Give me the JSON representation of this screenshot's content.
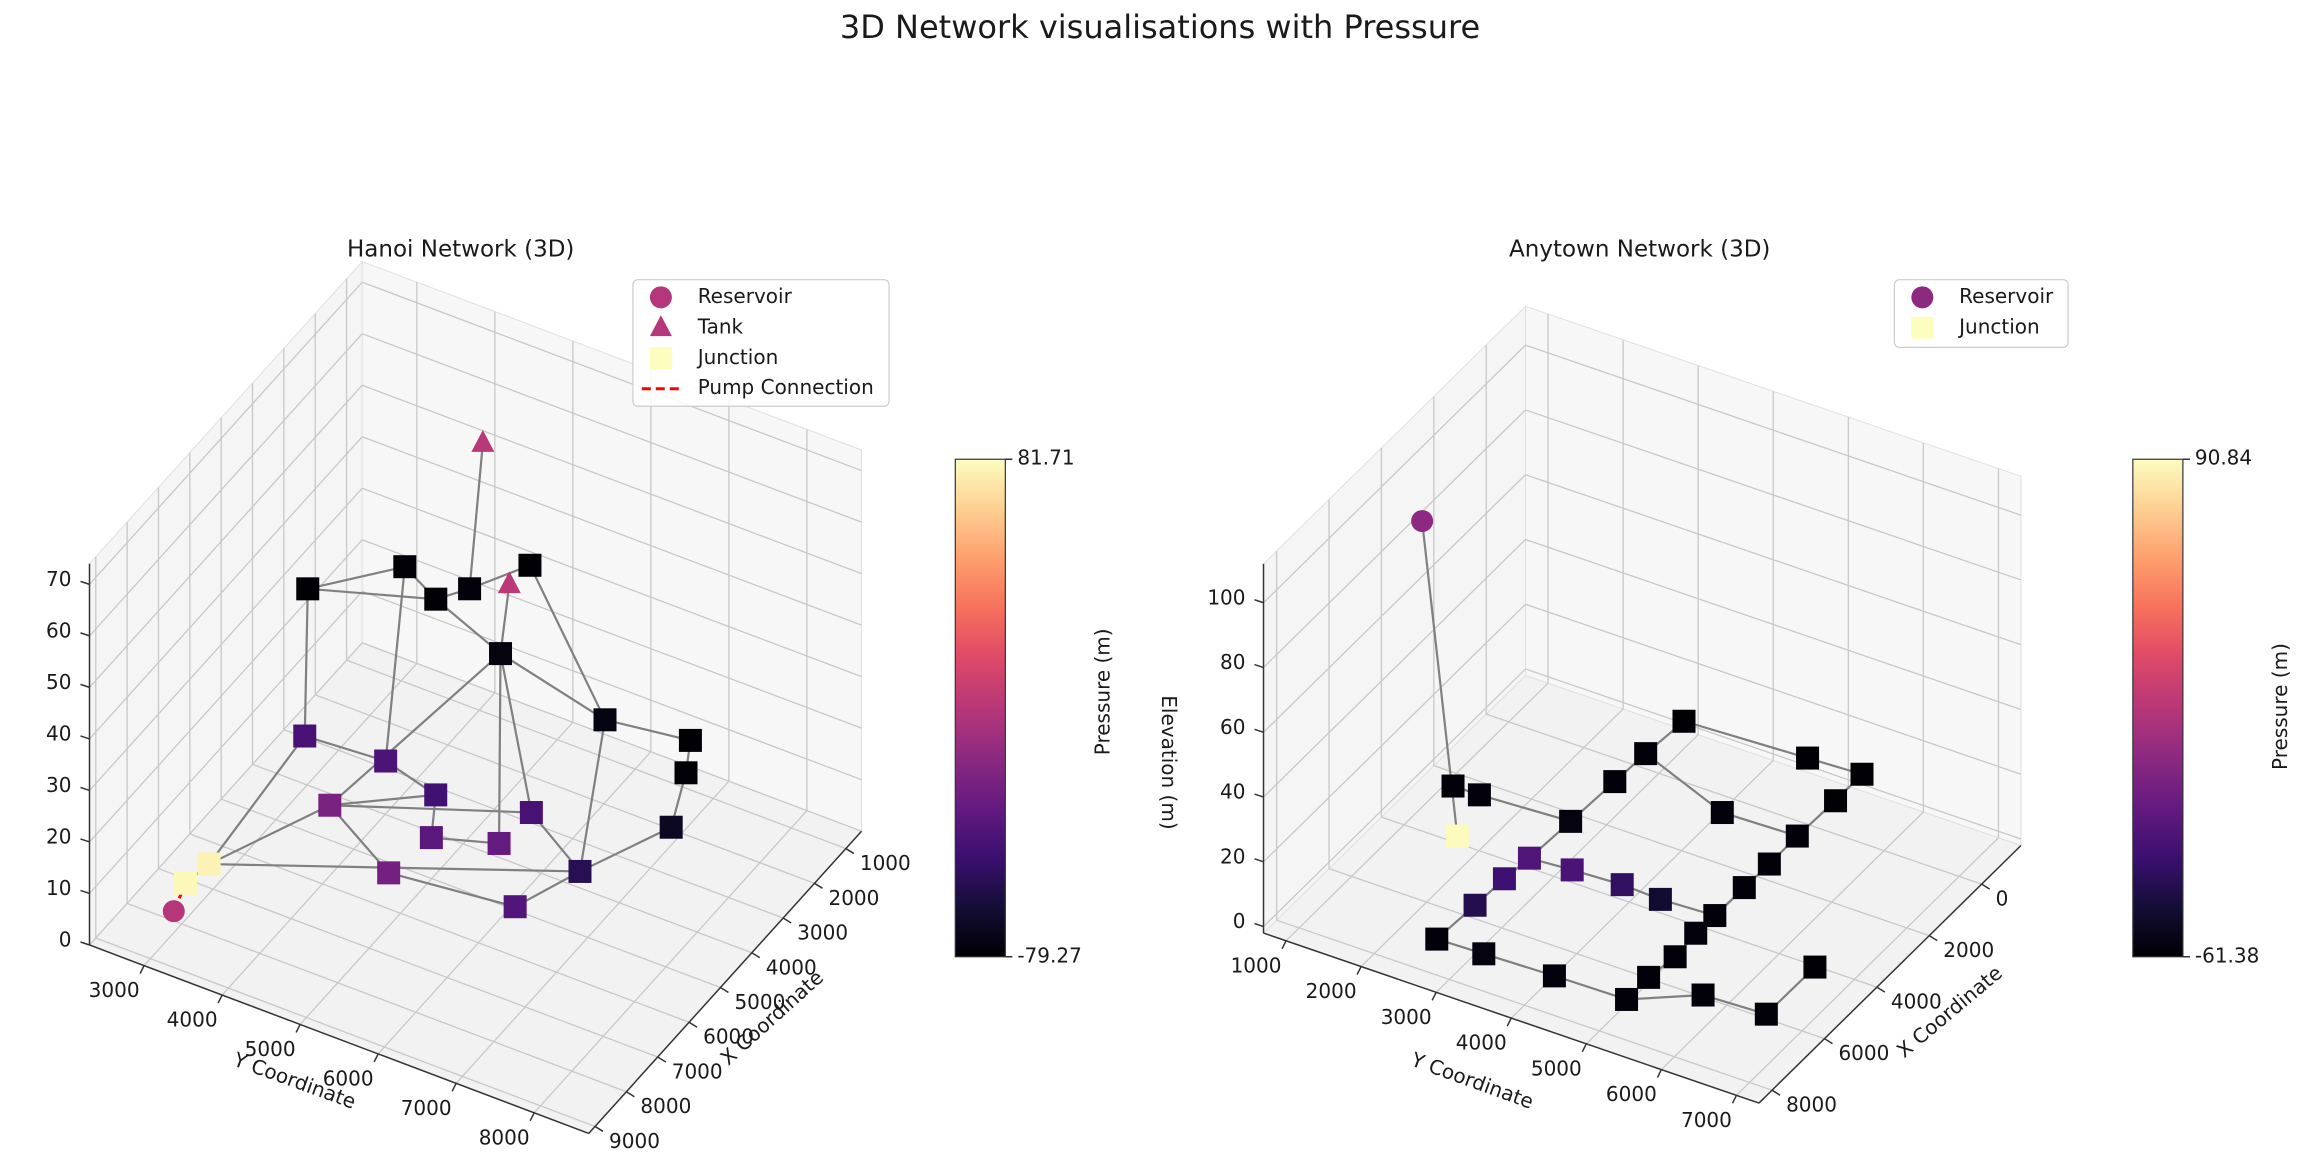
{
  "title": "3D Network visualisations with Pressure",
  "chart_data": [
    {
      "type": "network3d",
      "title": "Hanoi Network (3D)",
      "xlabel": "X Coordinate",
      "ylabel": "Y Coordinate",
      "xlim": [
        500,
        9200
      ],
      "ylim": [
        2300,
        8700
      ],
      "zlim": [
        0,
        74
      ],
      "xticks": [
        1000,
        2000,
        3000,
        4000,
        5000,
        6000,
        7000,
        8000,
        9000
      ],
      "yticks": [
        3000,
        4000,
        5000,
        6000,
        7000,
        8000
      ],
      "zticks": [
        0,
        10,
        20,
        30,
        40,
        50,
        60,
        70
      ],
      "link_color": "#808080",
      "series": [
        {
          "name": "Reservoir",
          "marker": "circle",
          "legend_color": "#b5367a",
          "x": [
            7791
          ],
          "y": [
            2814
          ],
          "z": [
            0
          ],
          "values": [
            1
          ]
        },
        {
          "name": "Tank",
          "marker": "triangle",
          "legend_color": "#b5367a",
          "x": [
            2978,
            3585
          ],
          "y": [
            4842,
            5425
          ],
          "z": [
            70,
            50
          ],
          "values": [
            2,
            3
          ]
        },
        {
          "name": "Junction",
          "marker": "square",
          "legend_color": "#fcfdbf",
          "x": [
            7649,
            7378,
            6421,
            5159,
            5052,
            4887,
            4114,
            4590,
            4059,
            3256,
            3434,
            4170,
            6840,
            6168,
            5937,
            6464,
            5783,
            5360,
            4987,
            6333,
            5482,
            4752
          ],
          "y": [
            2908,
            3101,
            3981,
            4718,
            5072,
            5439,
            5902,
            5716,
            6842,
            7614,
            7629,
            7735,
            4111,
            4878,
            5427,
            4281,
            5309,
            6007,
            6271,
            4983,
            6262,
            6800
          ],
          "z": [
            5,
            8,
            60,
            60,
            55,
            58,
            60,
            45,
            35,
            30,
            25,
            20,
            35,
            30,
            25,
            20,
            15,
            15,
            20,
            10,
            5,
            10
          ],
          "values": [
            80,
            78,
            -79,
            -78,
            -79,
            -77,
            -79,
            -76,
            -75,
            -79,
            -78,
            -70,
            -42,
            -40,
            -45,
            -23,
            -35,
            -30,
            -42,
            -25,
            -38,
            -55
          ]
        }
      ],
      "links": [
        [
          1,
          0,
          2,
          5
        ],
        [
          2,
          2,
          2,
          3
        ],
        [
          2,
          2,
          2,
          4
        ],
        [
          2,
          3,
          2,
          4
        ],
        [
          2,
          4,
          2,
          5
        ],
        [
          2,
          5,
          2,
          6
        ],
        [
          2,
          2,
          2,
          12
        ],
        [
          2,
          6,
          2,
          8
        ],
        [
          1,
          1,
          2,
          7
        ],
        [
          2,
          4,
          2,
          7
        ],
        [
          2,
          7,
          2,
          8
        ],
        [
          2,
          7,
          2,
          15
        ],
        [
          2,
          7,
          2,
          17
        ],
        [
          2,
          7,
          2,
          18
        ],
        [
          2,
          3,
          2,
          13
        ],
        [
          2,
          8,
          2,
          9
        ],
        [
          2,
          9,
          2,
          10
        ],
        [
          2,
          10,
          2,
          11
        ],
        [
          2,
          8,
          2,
          21
        ],
        [
          2,
          11,
          2,
          21
        ],
        [
          2,
          21,
          2,
          20
        ],
        [
          2,
          21,
          2,
          1
        ],
        [
          2,
          12,
          2,
          13
        ],
        [
          2,
          13,
          2,
          14
        ],
        [
          2,
          14,
          2,
          15
        ],
        [
          2,
          15,
          2,
          19
        ],
        [
          2,
          15,
          2,
          18
        ],
        [
          2,
          14,
          2,
          16
        ],
        [
          2,
          16,
          2,
          17
        ],
        [
          2,
          19,
          2,
          20
        ],
        [
          2,
          18,
          2,
          21
        ],
        [
          2,
          1,
          2,
          12
        ],
        [
          2,
          1,
          2,
          15
        ],
        [
          2,
          0,
          2,
          1
        ]
      ],
      "pump": {
        "name": "Pump Connection",
        "color": "#ff0000",
        "links": [
          [
            0,
            0,
            2,
            0
          ]
        ]
      },
      "colorbar": {
        "label": "Pressure (m)",
        "clim": [
          -79.27,
          81.71
        ],
        "ticks": [
          -79.27,
          81.71
        ]
      }
    },
    {
      "type": "network3d",
      "title": "Anytown Network (3D)",
      "xlabel": "X Coordinate",
      "ylabel": "Y Coordinate",
      "zlabel": "Elevation (m)",
      "xlim": [
        -1500,
        8500
      ],
      "ylim": [
        700,
        7300
      ],
      "zlim": [
        -2,
        112
      ],
      "xticks": [
        0,
        2000,
        4000,
        6000,
        8000
      ],
      "yticks": [
        1000,
        2000,
        3000,
        4000,
        5000,
        6000,
        7000
      ],
      "zticks": [
        0,
        20,
        40,
        60,
        80,
        100
      ],
      "link_color": "#808080",
      "series": [
        {
          "name": "Reservoir",
          "marker": "circle",
          "legend_color": "#8c2981",
          "x": [
            4583
          ],
          "y": [
            1446
          ],
          "z": [
            100
          ],
          "values": [
            0
          ]
        },
        {
          "name": "Junction",
          "marker": "square",
          "legend_color": "#fcfdbf",
          "x": [
            3516,
            3509,
            4913,
            -629,
            681,
            1791,
            3371,
            -790,
            -862,
            1619,
            162,
            1556,
            4837,
            5677,
            4753,
            4683,
            6729,
            4730,
            2637,
            3562,
            4658,
            5355,
            8081,
            8040,
            6236,
            7091,
            7978,
            7944,
            7061,
            6987,
            5152
          ],
          "y": [
            1485,
            1834,
            2030,
            3115,
            3062,
            3038,
            3001,
            4705,
            5405,
            4410,
            5410,
            5387,
            2964,
            2924,
            3504,
            4146,
            2900,
            4671,
            5392,
            5381,
            5371,
            5360,
            2862,
            3474,
            5393,
            5338,
            4393,
            5342,
            6053,
            6870,
            6877
          ],
          "z": [
            10,
            10,
            10,
            10,
            10,
            10,
            10,
            10,
            10,
            10,
            10,
            10,
            10,
            10,
            10,
            10,
            10,
            10,
            10,
            10,
            10,
            10,
            10,
            10,
            10,
            10,
            10,
            10,
            10,
            10,
            10
          ],
          "values": [
            -60,
            -59,
            90,
            -61,
            -60,
            -60,
            -58,
            -61,
            -61,
            -59,
            -61,
            -60,
            -23,
            -30,
            -25,
            -35,
            -40,
            -48,
            -60,
            -60,
            -60,
            -59,
            -60,
            -58,
            -60,
            -60,
            -59,
            -60,
            -60,
            -60,
            -61
          ]
        }
      ],
      "links": [
        [
          0,
          0,
          1,
          2
        ],
        [
          1,
          0,
          1,
          1
        ],
        [
          1,
          1,
          1,
          6
        ],
        [
          1,
          3,
          1,
          4
        ],
        [
          1,
          4,
          1,
          5
        ],
        [
          1,
          5,
          1,
          6
        ],
        [
          1,
          3,
          1,
          7
        ],
        [
          1,
          8,
          1,
          10
        ],
        [
          1,
          10,
          1,
          11
        ],
        [
          1,
          11,
          1,
          18
        ],
        [
          1,
          18,
          1,
          19
        ],
        [
          1,
          19,
          1,
          20
        ],
        [
          1,
          20,
          1,
          21
        ],
        [
          1,
          21,
          1,
          24
        ],
        [
          1,
          24,
          1,
          25
        ],
        [
          1,
          25,
          1,
          27
        ],
        [
          1,
          4,
          1,
          9
        ],
        [
          1,
          9,
          1,
          11
        ],
        [
          1,
          12,
          1,
          13
        ],
        [
          1,
          13,
          1,
          16
        ],
        [
          1,
          16,
          1,
          22
        ],
        [
          1,
          12,
          1,
          14
        ],
        [
          1,
          14,
          1,
          15
        ],
        [
          1,
          15,
          1,
          17
        ],
        [
          1,
          17,
          1,
          20
        ],
        [
          1,
          22,
          1,
          23
        ],
        [
          1,
          23,
          1,
          26
        ],
        [
          1,
          26,
          1,
          27
        ],
        [
          1,
          27,
          1,
          28
        ],
        [
          1,
          28,
          1,
          29
        ],
        [
          1,
          29,
          1,
          30
        ],
        [
          1,
          6,
          1,
          12
        ],
        [
          1,
          7,
          1,
          8
        ]
      ],
      "colorbar": {
        "label": "Pressure (m)",
        "clim": [
          -61.38,
          90.84
        ],
        "ticks": [
          -61.38,
          90.84
        ]
      }
    }
  ]
}
